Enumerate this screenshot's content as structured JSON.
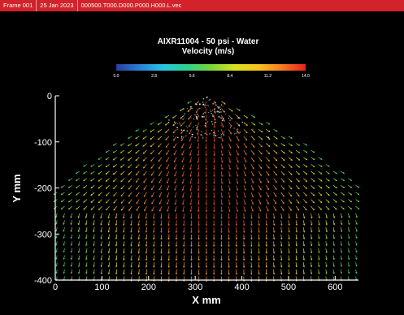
{
  "header": {
    "frame": "Frame 001",
    "date": "25 Jan 2023",
    "file": "000500.T000.D000.P000.H000.L.vec"
  },
  "chart_data": {
    "type": "vector_field",
    "title": "AIXR11004 - 50 psi - Water",
    "subtitle": "Velocity (m/s)",
    "xlabel": "X mm",
    "ylabel": "Y mm",
    "xlim": [
      0,
      650
    ],
    "ylim": [
      -400,
      0
    ],
    "x_ticks": [
      "0",
      "100",
      "200",
      "300",
      "400",
      "500",
      "600"
    ],
    "y_ticks": [
      "0",
      "-100",
      "-200",
      "-300",
      "-400"
    ],
    "colorbar": {
      "min": 0.0,
      "max": 14.0,
      "labels": [
        "0.0",
        "2.8",
        "5.6",
        "8.4",
        "11.2",
        "14.0"
      ],
      "colors": [
        "#2a3e9c",
        "#2a7fd6",
        "#26c6e0",
        "#2fd18a",
        "#7ad43a",
        "#d8e020",
        "#f5c220",
        "#f57c20",
        "#e82020"
      ]
    },
    "nozzle_x": 330,
    "spray_half_width_at_y": [
      [
        0,
        20
      ],
      [
        -100,
        200
      ],
      [
        -200,
        330
      ],
      [
        -235,
        345
      ],
      [
        -400,
        345
      ]
    ],
    "speed_peak": 13.0,
    "speed_edge": 5.5,
    "grid_spacing_mm": 16,
    "grid": false,
    "legend": "top-center"
  },
  "colors": {
    "header_bg": "#d2222a",
    "background": "#000000",
    "axis": "#ffffff"
  }
}
